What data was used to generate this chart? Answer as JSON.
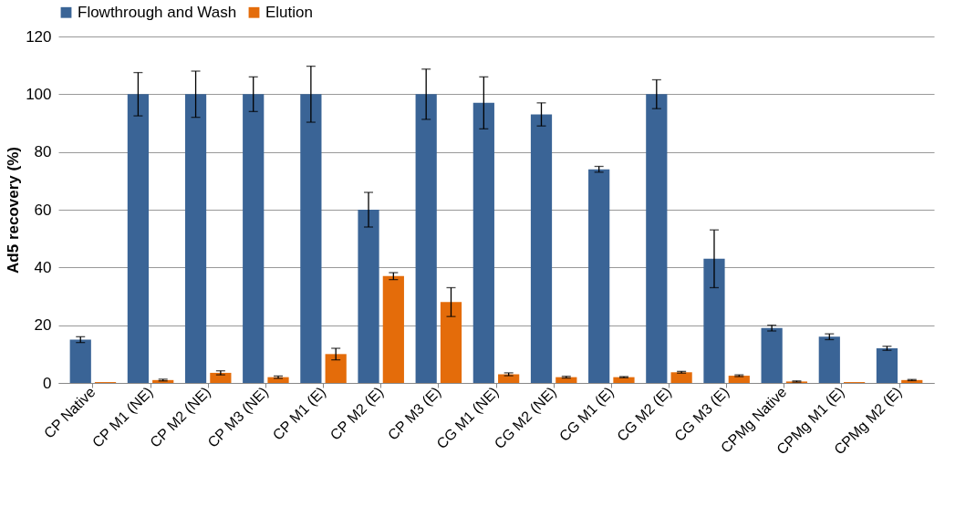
{
  "chart_data": {
    "type": "bar",
    "ylabel": "Ad5 recovery (%)",
    "categories": [
      "CP Native",
      "CP M1  (NE)",
      "CP M2  (NE)",
      "CP M3  (NE)",
      "CP M1 (E)",
      "CP M2 (E)",
      "CP M3 (E)",
      "CG M1 (NE)",
      "CG M2 (NE)",
      "CG M1 (E)",
      "CG M2 (E)",
      "CG M3 (E)",
      "CPMg Native",
      "CPMg M1 (E)",
      "CPMg M2 (E)"
    ],
    "series": [
      {
        "name": "Flowthrough and Wash",
        "color": "#3a6496",
        "values": [
          15,
          100,
          100,
          100,
          100,
          60,
          100,
          97,
          93,
          74,
          100,
          43,
          19,
          16,
          12
        ],
        "errors": [
          1,
          7.5,
          8,
          6,
          9.7,
          6,
          8.7,
          9,
          4,
          1,
          5,
          10,
          1,
          1,
          0.7
        ]
      },
      {
        "name": "Elution",
        "color": "#e46c0a",
        "values": [
          0.3,
          1,
          3.5,
          2,
          10,
          37,
          28,
          3,
          2,
          2,
          3.7,
          2.5,
          0.5,
          0.3,
          1
        ],
        "errors": [
          null,
          0.3,
          0.7,
          0.4,
          2,
          1.2,
          5,
          0.5,
          0.3,
          0.2,
          0.3,
          0.3,
          0.2,
          null,
          0.2
        ]
      }
    ],
    "ylim": [
      0,
      120
    ],
    "yticks": [
      0,
      20,
      40,
      60,
      80,
      100,
      120
    ],
    "grid": "y",
    "legend": "top"
  }
}
